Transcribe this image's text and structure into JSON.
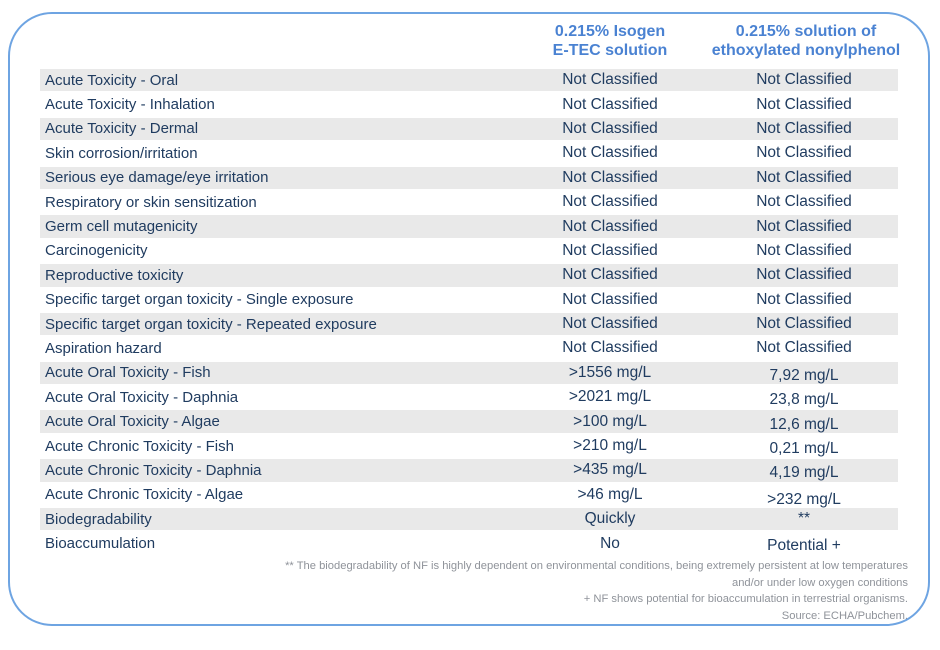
{
  "document": {
    "columns": [
      {
        "line1": "0.215% Isogen",
        "line2": "E-TEC solution"
      },
      {
        "line1": "0.215% solution of",
        "line2": "ethoxylated nonylphenol"
      }
    ],
    "rows": [
      {
        "label": "Acute Toxicity - Oral",
        "isogen": "Not Classified",
        "nonylphenol": "Not Classified"
      },
      {
        "label": "Acute Toxicity - Inhalation",
        "isogen": "Not Classified",
        "nonylphenol": "Not Classified"
      },
      {
        "label": "Acute Toxicity - Dermal",
        "isogen": "Not Classified",
        "nonylphenol": "Not Classified"
      },
      {
        "label": "Skin corrosion/irritation",
        "isogen": "Not Classified",
        "nonylphenol": "Not Classified"
      },
      {
        "label": "Serious eye damage/eye irritation",
        "isogen": "Not Classified",
        "nonylphenol": "Not Classified"
      },
      {
        "label": "Respiratory or skin sensitization",
        "isogen": "Not Classified",
        "nonylphenol": "Not Classified"
      },
      {
        "label": "Germ cell mutagenicity",
        "isogen": "Not Classified",
        "nonylphenol": "Not Classified"
      },
      {
        "label": "Carcinogenicity",
        "isogen": "Not Classified",
        "nonylphenol": "Not Classified"
      },
      {
        "label": "Reproductive toxicity",
        "isogen": "Not Classified",
        "nonylphenol": "Not Classified"
      },
      {
        "label": "Specific target organ toxicity - Single exposure",
        "isogen": "Not Classified",
        "nonylphenol": "Not Classified"
      },
      {
        "label": "Specific target organ toxicity - Repeated exposure",
        "isogen": "Not Classified",
        "nonylphenol": "Not Classified"
      },
      {
        "label": "Aspiration hazard",
        "isogen": "Not Classified",
        "nonylphenol": "Not Classified"
      },
      {
        "label": "Acute Oral Toxicity - Fish",
        "isogen": ">1556 mg/L",
        "nonylphenol": "7,92 mg/L"
      },
      {
        "label": "Acute Oral Toxicity - Daphnia",
        "isogen": ">2021 mg/L",
        "nonylphenol": "23,8 mg/L"
      },
      {
        "label": "Acute Oral Toxicity - Algae",
        "isogen": ">100 mg/L",
        "nonylphenol": "12,6 mg/L"
      },
      {
        "label": "Acute Chronic Toxicity - Fish",
        "isogen": ">210 mg/L",
        "nonylphenol": "0,21 mg/L"
      },
      {
        "label": "Acute Chronic Toxicity - Daphnia",
        "isogen": ">435 mg/L",
        "nonylphenol": "4,19 mg/L"
      },
      {
        "label": "Acute Chronic Toxicity - Algae",
        "isogen": ">46 mg/L",
        "nonylphenol": ">232 mg/L"
      },
      {
        "label": "Biodegradability",
        "isogen": "Quickly",
        "nonylphenol": "**"
      },
      {
        "label": "Bioaccumulation",
        "isogen": "No",
        "nonylphenol": "Potential +"
      }
    ],
    "footnotes": [
      "** The biodegradability of NF is highly dependent on environmental conditions, being extremely persistent at low temperatures",
      "and/or under low oxygen conditions",
      "+ NF shows potential for bioaccumulation in terrestrial organisms.",
      "Source: ECHA/Pubchem."
    ],
    "colors": {
      "header_blue": "#4a82d2",
      "frame_border_blue": "#6ea4e2",
      "body_text_navy": "#203c60",
      "row_stripe_gray": "#e9e9e9",
      "footnote_gray": "#8f939a"
    }
  }
}
